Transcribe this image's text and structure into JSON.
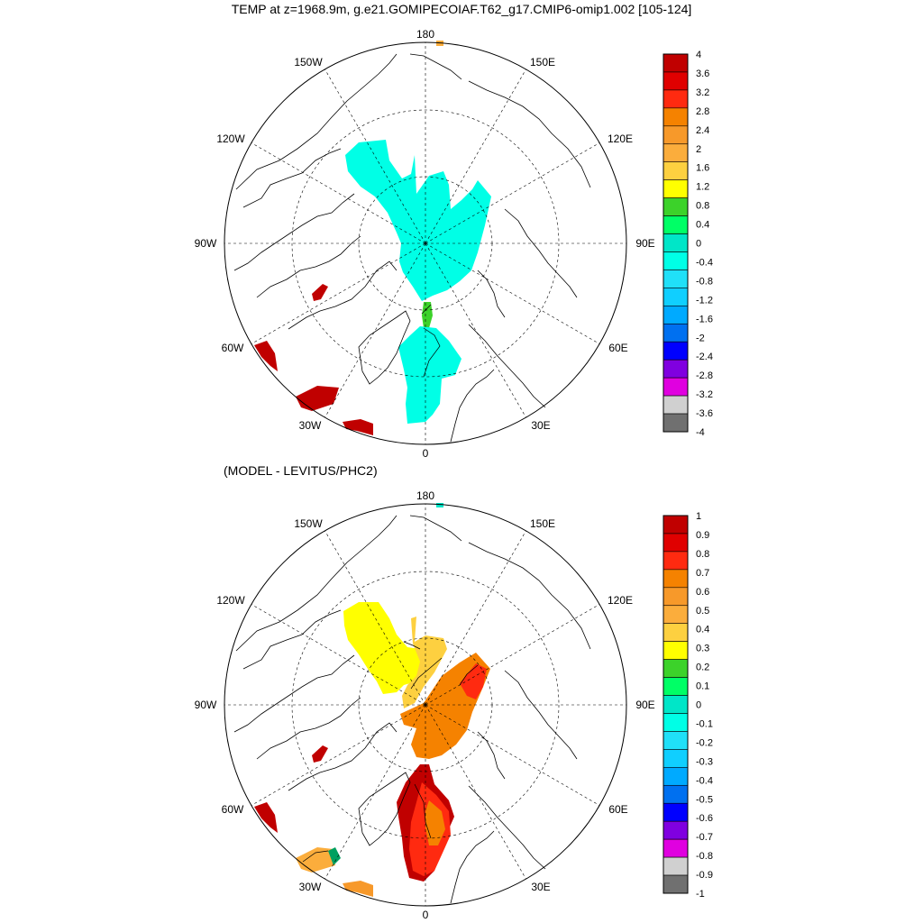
{
  "title": "TEMP at z=1968.9m, g.e21.GOMIPECOIAF.T62_g17.CMIP6-omip1.002 [105-124]",
  "panels": [
    {
      "name": "model",
      "subtitle": "",
      "lon_labels": [
        "180",
        "150E",
        "120E",
        "90E",
        "60E",
        "30E",
        "0",
        "30W",
        "60W",
        "90W",
        "120W",
        "150W"
      ],
      "colorbar": {
        "labels": [
          "4",
          "3.6",
          "3.2",
          "2.8",
          "2.4",
          "2",
          "1.6",
          "1.2",
          "0.8",
          "0.4",
          "0",
          "-0.4",
          "-0.8",
          "-1.2",
          "-1.6",
          "-2",
          "-2.4",
          "-2.8",
          "-3.2",
          "-3.6",
          "-4"
        ],
        "colors": [
          "#c00000",
          "#e00000",
          "#ff2a10",
          "#f58200",
          "#f7992a",
          "#fbad3c",
          "#fdd040",
          "#ffff00",
          "#3cd22a",
          "#00ff66",
          "#00e6c8",
          "#00ffe6",
          "#20e0f8",
          "#10cfff",
          "#00aaff",
          "#0070f0",
          "#0000ff",
          "#8000e0",
          "#e000e0",
          "#d0d0d0",
          "#707070"
        ]
      }
    },
    {
      "name": "difference",
      "subtitle": "(MODEL - LEVITUS/PHC2)",
      "lon_labels": [
        "180",
        "150E",
        "120E",
        "90E",
        "60E",
        "30E",
        "0",
        "30W",
        "60W",
        "90W",
        "120W",
        "150W"
      ],
      "colorbar": {
        "labels": [
          "1",
          "0.9",
          "0.8",
          "0.7",
          "0.6",
          "0.5",
          "0.4",
          "0.3",
          "0.2",
          "0.1",
          "0",
          "-0.1",
          "-0.2",
          "-0.3",
          "-0.4",
          "-0.5",
          "-0.6",
          "-0.7",
          "-0.8",
          "-0.9",
          "-1"
        ],
        "colors": [
          "#c00000",
          "#e00000",
          "#ff2a10",
          "#f58200",
          "#f7992a",
          "#fbad3c",
          "#fdd040",
          "#ffff00",
          "#3cd22a",
          "#00ff66",
          "#00e6c8",
          "#00ffe6",
          "#20e0f8",
          "#10cfff",
          "#00aaff",
          "#0070f0",
          "#0000ff",
          "#8000e0",
          "#e000e0",
          "#d0d0d0",
          "#707070"
        ]
      }
    }
  ]
}
